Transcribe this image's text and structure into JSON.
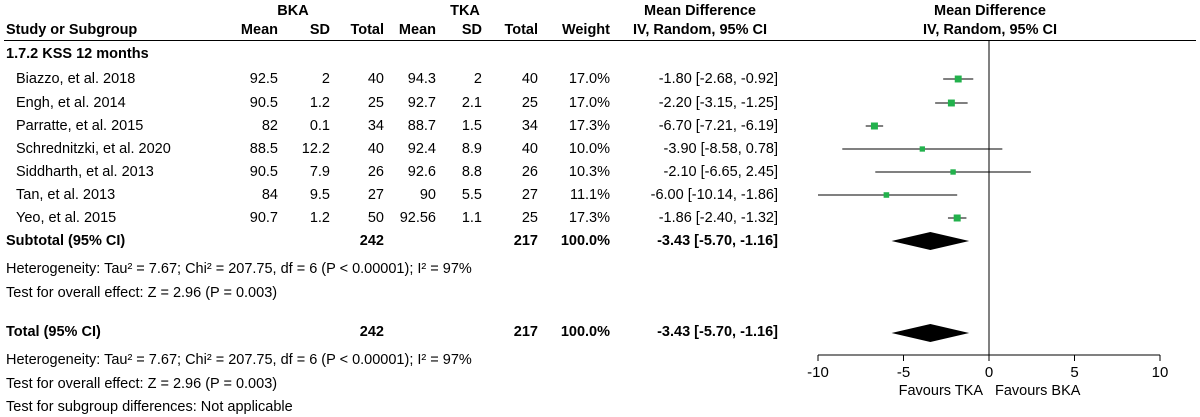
{
  "headers": {
    "study": "Study or Subgroup",
    "group1": "BKA",
    "group2": "TKA",
    "mean": "Mean",
    "sd": "SD",
    "total": "Total",
    "weight": "Weight",
    "md_title": "Mean Difference",
    "md_method": "IV, Random, 95% CI",
    "plot_title": "Mean Difference",
    "plot_method": "IV, Random, 95% CI"
  },
  "subgroup_title": "1.7.2 KSS 12 months",
  "studies": [
    {
      "name": "Biazzo, et al. 2018",
      "m1": "92.5",
      "sd1": "2",
      "n1": "40",
      "m2": "94.3",
      "sd2": "2",
      "n2": "40",
      "weight": "17.0%",
      "ci_text": "-1.80 [-2.68, -0.92]"
    },
    {
      "name": "Engh, et al. 2014",
      "m1": "90.5",
      "sd1": "1.2",
      "n1": "25",
      "m2": "92.7",
      "sd2": "2.1",
      "n2": "25",
      "weight": "17.0%",
      "ci_text": "-2.20 [-3.15, -1.25]"
    },
    {
      "name": "Parratte, et al. 2015",
      "m1": "82",
      "sd1": "0.1",
      "n1": "34",
      "m2": "88.7",
      "sd2": "1.5",
      "n2": "34",
      "weight": "17.3%",
      "ci_text": "-6.70 [-7.21, -6.19]"
    },
    {
      "name": "Schrednitzki, et al. 2020",
      "m1": "88.5",
      "sd1": "12.2",
      "n1": "40",
      "m2": "92.4",
      "sd2": "8.9",
      "n2": "40",
      "weight": "10.0%",
      "ci_text": "-3.90 [-8.58, 0.78]"
    },
    {
      "name": "Siddharth, et al. 2013",
      "m1": "90.5",
      "sd1": "7.9",
      "n1": "26",
      "m2": "92.6",
      "sd2": "8.8",
      "n2": "26",
      "weight": "10.3%",
      "ci_text": "-2.10 [-6.65, 2.45]"
    },
    {
      "name": "Tan, et al. 2013",
      "m1": "84",
      "sd1": "9.5",
      "n1": "27",
      "m2": "90",
      "sd2": "5.5",
      "n2": "27",
      "weight": "11.1%",
      "ci_text": "-6.00 [-10.14, -1.86]"
    },
    {
      "name": "Yeo, et al. 2015",
      "m1": "90.7",
      "sd1": "1.2",
      "n1": "50",
      "m2": "92.56",
      "sd2": "1.1",
      "n2": "25",
      "weight": "17.3%",
      "ci_text": "-1.86 [-2.40, -1.32]"
    }
  ],
  "subtotal": {
    "label": "Subtotal (95% CI)",
    "n1": "242",
    "n2": "217",
    "weight": "100.0%",
    "ci_text": "-3.43 [-5.70, -1.16]"
  },
  "subtotal_heterogeneity": "Heterogeneity: Tau² = 7.67; Chi² = 207.75, df = 6 (P < 0.00001); I² = 97%",
  "subtotal_overall": "Test for overall effect: Z = 2.96 (P = 0.003)",
  "total": {
    "label": "Total (95% CI)",
    "n1": "242",
    "n2": "217",
    "weight": "100.0%",
    "ci_text": "-3.43 [-5.70, -1.16]"
  },
  "total_heterogeneity": "Heterogeneity: Tau² = 7.67; Chi² = 207.75, df = 6 (P < 0.00001); I² = 97%",
  "total_overall": "Test for overall effect: Z = 2.96 (P = 0.003)",
  "subgroup_diff": "Test for subgroup differences: Not applicable",
  "chart_data": {
    "type": "forest",
    "xlim": [
      -10,
      10
    ],
    "ticks": [
      -10,
      -5,
      0,
      5,
      10
    ],
    "tick_labels": [
      "-10",
      "-5",
      "0",
      "5",
      "10"
    ],
    "favours_left": "Favours TKA",
    "favours_right": "Favours BKA",
    "marker_color": "#22b14c",
    "diamond_color": "#000000",
    "studies": [
      {
        "name": "Biazzo, et al. 2018",
        "md": -1.8,
        "lo": -2.68,
        "hi": -0.92
      },
      {
        "name": "Engh, et al. 2014",
        "md": -2.2,
        "lo": -3.15,
        "hi": -1.25
      },
      {
        "name": "Parratte, et al. 2015",
        "md": -6.7,
        "lo": -7.21,
        "hi": -6.19
      },
      {
        "name": "Schrednitzki, et al. 2020",
        "md": -3.9,
        "lo": -8.58,
        "hi": 0.78
      },
      {
        "name": "Siddharth, et al. 2013",
        "md": -2.1,
        "lo": -6.65,
        "hi": 2.45
      },
      {
        "name": "Tan, et al. 2013",
        "md": -6.0,
        "lo": -10.14,
        "hi": -1.86
      },
      {
        "name": "Yeo, et al. 2015",
        "md": -1.86,
        "lo": -2.4,
        "hi": -1.32
      }
    ],
    "subtotal": {
      "md": -3.43,
      "lo": -5.7,
      "hi": -1.16
    },
    "total": {
      "md": -3.43,
      "lo": -5.7,
      "hi": -1.16
    }
  }
}
